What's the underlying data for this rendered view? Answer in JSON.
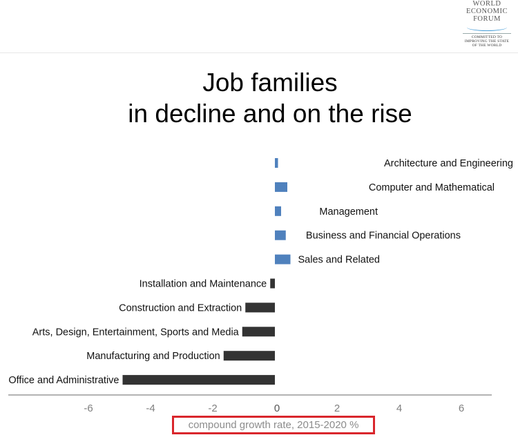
{
  "logo": {
    "lines": [
      "WORLD",
      "ECONOMIC",
      "FORUM"
    ],
    "tagline": [
      "COMMITTED TO",
      "IMPROVING THE STATE",
      "OF THE WORLD"
    ]
  },
  "chart_data": {
    "type": "bar",
    "orientation": "horizontal",
    "title": [
      "Job families",
      "in decline and on the rise"
    ],
    "xlabel": "compound growth rate, 2015-2020 %",
    "ylabel": "",
    "xlim": [
      -7,
      7.5
    ],
    "xticks": [
      -6,
      -4,
      -2,
      0,
      2,
      4,
      6
    ],
    "grid": false,
    "colors": {
      "positive": "#4f81bd",
      "negative": "#333333"
    },
    "categories": [
      "Architecture and Engineering",
      "Computer and Mathematical",
      "Management",
      "Business and Financial Operations",
      "Sales and Related",
      "Installation and Maintenance",
      "Construction and Extraction",
      "Arts, Design, Entertainment, Sports and Media",
      "Manufacturing and Production",
      "Office and Administrative"
    ],
    "values": [
      0.1,
      0.4,
      0.2,
      0.35,
      0.5,
      -0.15,
      -0.95,
      -1.05,
      -1.65,
      -4.9
    ]
  }
}
